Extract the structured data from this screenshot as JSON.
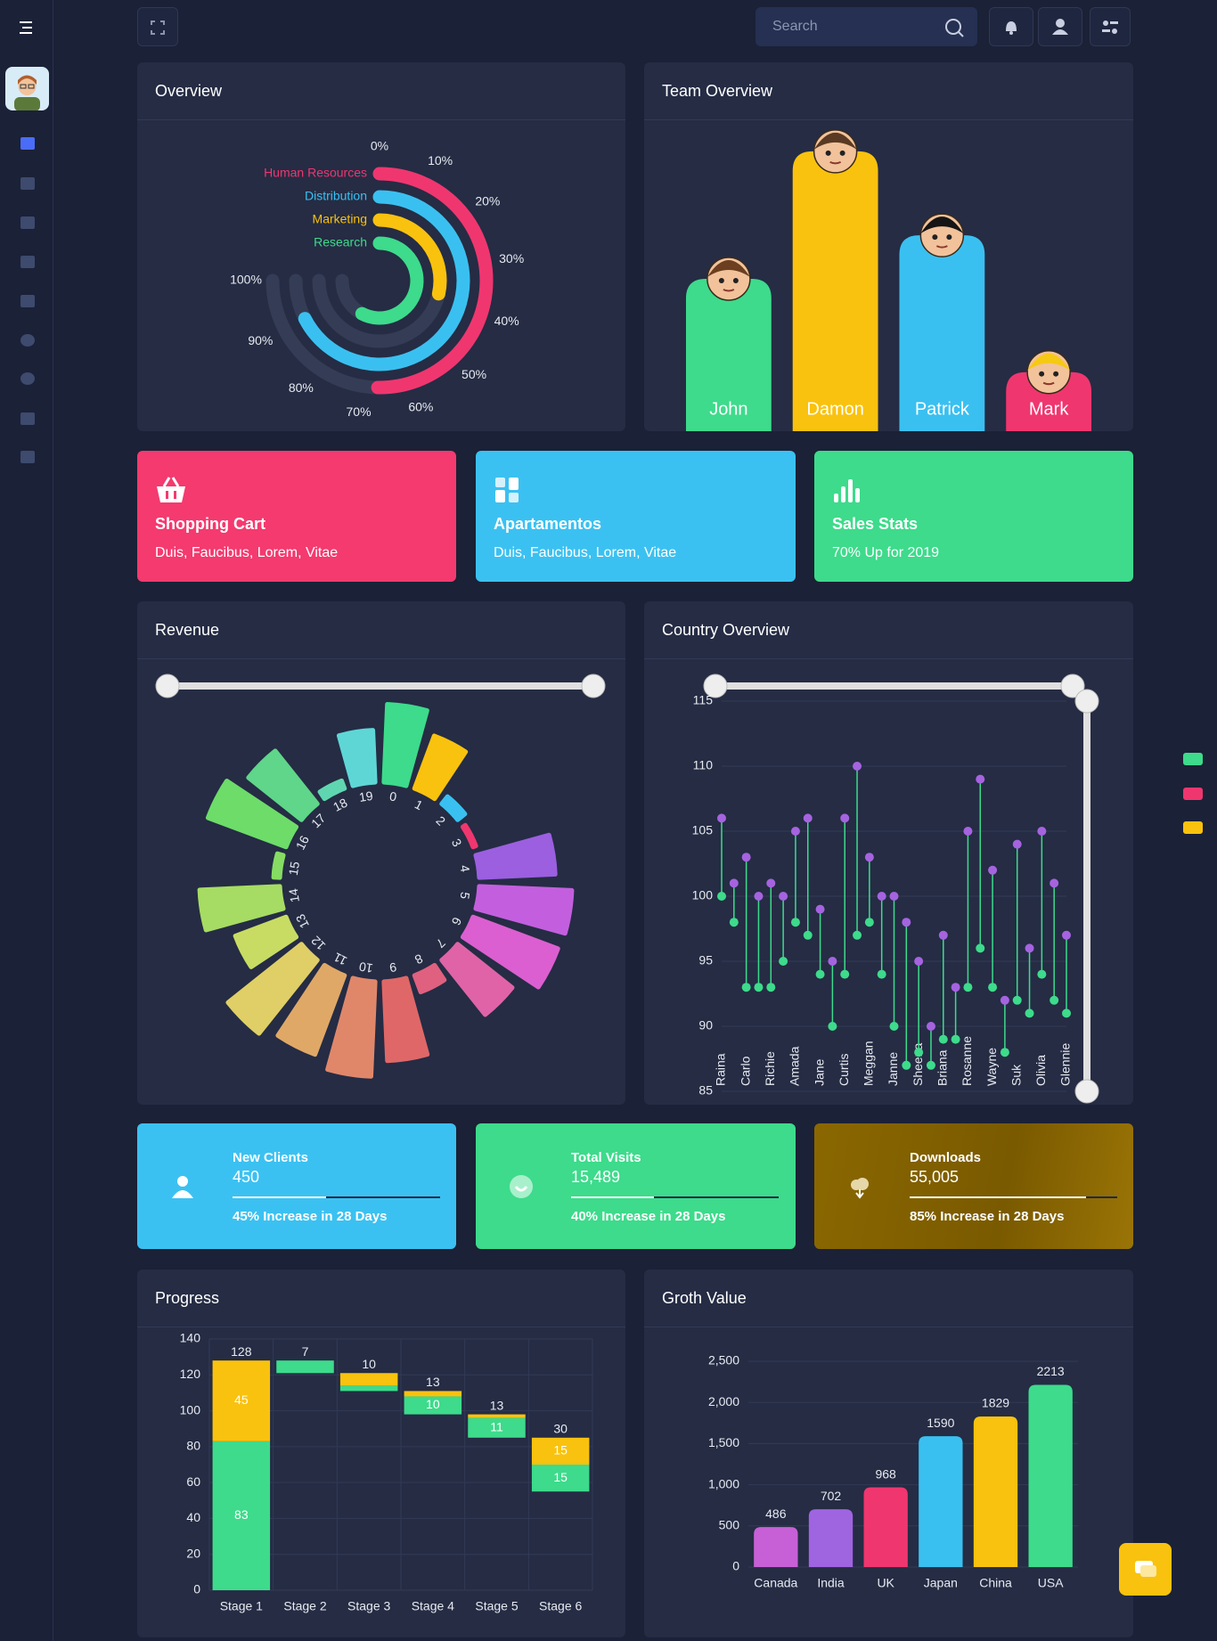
{
  "search": "Search",
  "stat_cards": [
    {
      "title": "Shopping Cart",
      "text": "Duis, Faucibus, Lorem, Vitae"
    },
    {
      "title": "Apartamentos",
      "text": "Duis, Faucibus, Lorem, Vitae"
    },
    {
      "title": "Sales Stats",
      "text": "70% Up for 2019"
    }
  ],
  "info_cards": [
    {
      "title": "New Clients",
      "value": "450",
      "progress": 45,
      "text": "45% Increase in 28 Days"
    },
    {
      "title": "Total Visits",
      "value": "15,489",
      "progress": 40,
      "text": "40% Increase in 28 Days"
    },
    {
      "title": "Downloads",
      "value": "55,005",
      "progress": 85,
      "text": "85% Increase in 28 Days"
    }
  ],
  "chart_data": [
    {
      "type": "radialBar",
      "title": "Overview",
      "categories": [
        "Human Resources",
        "Distribution",
        "Marketing",
        "Research"
      ],
      "values": [
        67,
        90,
        38,
        77
      ],
      "colors": [
        "#f0366f",
        "#3ac0f0",
        "#f9c20e",
        "#3ddb8b"
      ],
      "ylim": [
        0,
        100
      ],
      "yticks": [
        {
          "value": 0,
          "label": "0%"
        },
        {
          "value": 10,
          "label": "10%"
        },
        {
          "value": 20,
          "label": "20%"
        },
        {
          "value": 30,
          "label": "30%"
        },
        {
          "value": 40,
          "label": "40%"
        },
        {
          "value": 50,
          "label": "50%"
        },
        {
          "value": 60,
          "label": "60%"
        },
        {
          "value": 70,
          "label": "70%"
        },
        {
          "value": 80,
          "label": "80%"
        },
        {
          "value": 90,
          "label": "90%"
        },
        {
          "value": 100,
          "label": "100%"
        }
      ]
    },
    {
      "type": "bar",
      "title": "Team Overview",
      "categories": [
        "John",
        "Damon",
        "Patrick",
        "Mark"
      ],
      "values": [
        49,
        90,
        63,
        19
      ],
      "colors": [
        "#3ddb8b",
        "#f9c20e",
        "#3ac0f0",
        "#f0366f"
      ],
      "ylim": [
        0,
        100
      ],
      "label_position": "inside",
      "avatars": true
    },
    {
      "type": "polarBar",
      "title": "Revenue",
      "categories": [
        "0",
        "1",
        "2",
        "3",
        "4",
        "5",
        "6",
        "7",
        "8",
        "9",
        "10",
        "11",
        "12",
        "13",
        "14",
        "15",
        "16",
        "17",
        "18",
        "19"
      ],
      "values": [
        75,
        54,
        9,
        3,
        73,
        89,
        87,
        67,
        17,
        76,
        91,
        81,
        90,
        52,
        77,
        6,
        80,
        65,
        8,
        50
      ],
      "colors": [
        "#3ddb8b",
        "#f9c20e",
        "#3ac0f0",
        "#f0366f",
        "#9b5fe0",
        "#c35fde",
        "#db5fd0",
        "#e063a8",
        "#e0607f",
        "#e06767",
        "#e0876a",
        "#e0a866",
        "#e0cf66",
        "#c8dc63",
        "#a6dc63",
        "#86dc63",
        "#6ddc69",
        "#5fd689",
        "#5fd6b0",
        "#5fd6d6"
      ],
      "rlim": [
        0,
        100
      ]
    },
    {
      "type": "dumbbell",
      "title": "Country Overview",
      "categories": [
        "Raina",
        null,
        "Carlo",
        null,
        "Richie",
        null,
        "Amada",
        null,
        "Jane",
        null,
        "Curtis",
        null,
        "Meggan",
        null,
        "Janne",
        null,
        "Sheena",
        null,
        "Briana",
        null,
        "Rosanne",
        null,
        "Wayne",
        null,
        "Suk",
        null,
        "Olivia",
        null,
        "Glennie"
      ],
      "series": [
        {
          "color": "#a663e0",
          "values": [
            106,
            101,
            103,
            100,
            101,
            100,
            105,
            106,
            99,
            95,
            106,
            110,
            103,
            100,
            100,
            98,
            95,
            90,
            97,
            93,
            105,
            109,
            102,
            92,
            104,
            96,
            105,
            101,
            97
          ]
        },
        {
          "color": "#3ddb8b",
          "values": [
            100,
            98,
            93,
            93,
            93,
            95,
            98,
            97,
            94,
            90,
            94,
            97,
            98,
            94,
            90,
            87,
            88,
            87,
            89,
            89,
            93,
            96,
            93,
            88,
            92,
            91,
            94,
            92,
            91
          ]
        }
      ],
      "ylim": [
        85,
        115
      ],
      "yticks": [
        85,
        90,
        95,
        100,
        105,
        110,
        115
      ],
      "grid": true
    },
    {
      "type": "waterfall",
      "title": "Progress",
      "categories": [
        "Stage 1",
        "Stage 2",
        "Stage 3",
        "Stage 4",
        "Stage 5",
        "Stage 6"
      ],
      "totals": [
        128,
        7,
        10,
        13,
        13,
        30
      ],
      "series": [
        {
          "color": "#3ddb8b",
          "values": [
            83,
            7,
            3,
            10,
            11,
            15
          ],
          "value_labels": [
            "83",
            null,
            null,
            "10",
            "11",
            "15"
          ]
        },
        {
          "color": "#f9c20e",
          "values": [
            45,
            0,
            7,
            3,
            2,
            15
          ],
          "value_labels": [
            "45",
            null,
            null,
            null,
            null,
            "15"
          ]
        }
      ],
      "ylim": [
        0,
        140
      ],
      "yticks": [
        0,
        20,
        40,
        60,
        80,
        100,
        120,
        140
      ],
      "grid": true
    },
    {
      "type": "bar",
      "title": "Groth Value",
      "categories": [
        "Canada",
        "India",
        "UK",
        "Japan",
        "China",
        "USA"
      ],
      "values": [
        486,
        702,
        968,
        1590,
        1829,
        2213
      ],
      "colors": [
        "#c760d6",
        "#9f64e0",
        "#f0366f",
        "#3ac0f0",
        "#f9c20e",
        "#3ddb8b"
      ],
      "ylim": [
        0,
        2500
      ],
      "yticks": [
        0,
        500,
        {
          "value": 1000,
          "label": "1,000"
        },
        {
          "value": 1500,
          "label": "1,500"
        },
        {
          "value": 2000,
          "label": "2,000"
        },
        {
          "value": 2500,
          "label": "2,500"
        }
      ],
      "grid": true,
      "label_position": "below",
      "data_labels": true
    }
  ]
}
